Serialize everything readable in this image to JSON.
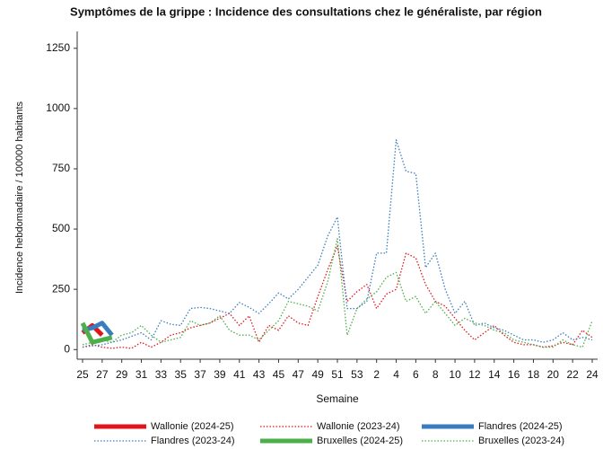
{
  "chart_data": {
    "type": "line",
    "title": "Symptômes de la grippe : Incidence des consultations chez le généraliste, par région",
    "x_label": "Semaine",
    "y_label": "Incidence hebdomadaire / 100000 habitants",
    "categories": [
      "25",
      null,
      "27",
      null,
      "29",
      null,
      "31",
      null,
      "33",
      null,
      "35",
      null,
      "37",
      null,
      "39",
      null,
      "41",
      null,
      "43",
      null,
      "45",
      null,
      "47",
      null,
      "49",
      null,
      "51",
      null,
      "53",
      null,
      "2",
      null,
      "4",
      null,
      "6",
      null,
      "8",
      null,
      "10",
      null,
      "12",
      null,
      "14",
      null,
      "16",
      null,
      "18",
      null,
      "20",
      null,
      "22",
      null,
      "24"
    ],
    "ylim": [
      -40,
      1320
    ],
    "yticks": [
      0,
      250,
      500,
      750,
      1000,
      1250
    ],
    "grid": false,
    "legend": "bottom",
    "series": [
      {
        "name": "Wallonie (2024-25)",
        "color": "#e0161b",
        "line_style": "solid",
        "line_width": 5,
        "values": [
          70,
          100,
          60,
          null,
          null,
          null,
          null,
          null,
          null,
          null,
          null,
          null,
          null,
          null,
          null,
          null,
          null,
          null,
          null,
          null,
          null,
          null,
          null,
          null,
          null,
          null,
          null,
          null,
          null,
          null,
          null,
          null,
          null,
          null,
          null,
          null,
          null,
          null,
          null,
          null,
          null,
          null,
          null,
          null,
          null,
          null,
          null,
          null,
          null,
          null,
          null,
          null,
          null
        ]
      },
      {
        "name": "Wallonie (2023-24)",
        "color": "#e0161b",
        "line_style": "dotted",
        "line_width": 1.3,
        "values": [
          10,
          20,
          10,
          5,
          10,
          5,
          30,
          10,
          30,
          60,
          70,
          90,
          100,
          110,
          130,
          150,
          100,
          140,
          30,
          100,
          80,
          140,
          110,
          100,
          220,
          330,
          430,
          200,
          240,
          270,
          170,
          230,
          250,
          400,
          380,
          270,
          200,
          180,
          130,
          80,
          40,
          70,
          100,
          60,
          30,
          20,
          20,
          10,
          15,
          30,
          20,
          80,
          50
        ]
      },
      {
        "name": "Flandres (2024-25)",
        "color": "#3a7dbf",
        "line_style": "solid",
        "line_width": 5,
        "values": [
          80,
          90,
          110,
          60,
          null,
          null,
          null,
          null,
          null,
          null,
          null,
          null,
          null,
          null,
          null,
          null,
          null,
          null,
          null,
          null,
          null,
          null,
          null,
          null,
          null,
          null,
          null,
          null,
          null,
          null,
          null,
          null,
          null,
          null,
          null,
          null,
          null,
          null,
          null,
          null,
          null,
          null,
          null,
          null,
          null,
          null,
          null,
          null,
          null,
          null,
          null,
          null,
          null
        ]
      },
      {
        "name": "Flandres (2023-24)",
        "color": "#3a7dbf",
        "line_style": "dotted",
        "line_width": 1.3,
        "values": [
          10,
          15,
          20,
          30,
          40,
          55,
          70,
          40,
          120,
          105,
          100,
          170,
          175,
          170,
          160,
          150,
          195,
          175,
          150,
          190,
          235,
          210,
          250,
          300,
          350,
          470,
          550,
          170,
          170,
          200,
          400,
          400,
          870,
          740,
          730,
          340,
          400,
          250,
          150,
          200,
          100,
          110,
          90,
          80,
          60,
          40,
          40,
          30,
          40,
          70,
          40,
          50,
          40
        ]
      },
      {
        "name": "Bruxelles (2024-25)",
        "color": "#4daf4a",
        "line_style": "solid",
        "line_width": 5,
        "values": [
          110,
          30,
          40,
          50,
          null,
          null,
          null,
          null,
          null,
          null,
          null,
          null,
          null,
          null,
          null,
          null,
          null,
          null,
          null,
          null,
          null,
          null,
          null,
          null,
          null,
          null,
          null,
          null,
          null,
          null,
          null,
          null,
          null,
          null,
          null,
          null,
          null,
          null,
          null,
          null,
          null,
          null,
          null,
          null,
          null,
          null,
          null,
          null,
          null,
          null,
          null,
          null,
          null
        ]
      },
      {
        "name": "Bruxelles (2023-24)",
        "color": "#4daf4a",
        "line_style": "dotted",
        "line_width": 1.3,
        "values": [
          20,
          30,
          40,
          30,
          60,
          70,
          100,
          60,
          30,
          40,
          50,
          120,
          100,
          110,
          140,
          80,
          60,
          60,
          40,
          80,
          120,
          200,
          190,
          180,
          160,
          280,
          460,
          60,
          170,
          210,
          240,
          300,
          320,
          200,
          220,
          150,
          200,
          150,
          100,
          130,
          110,
          100,
          80,
          70,
          40,
          30,
          20,
          10,
          10,
          40,
          20,
          10,
          120
        ]
      }
    ]
  }
}
